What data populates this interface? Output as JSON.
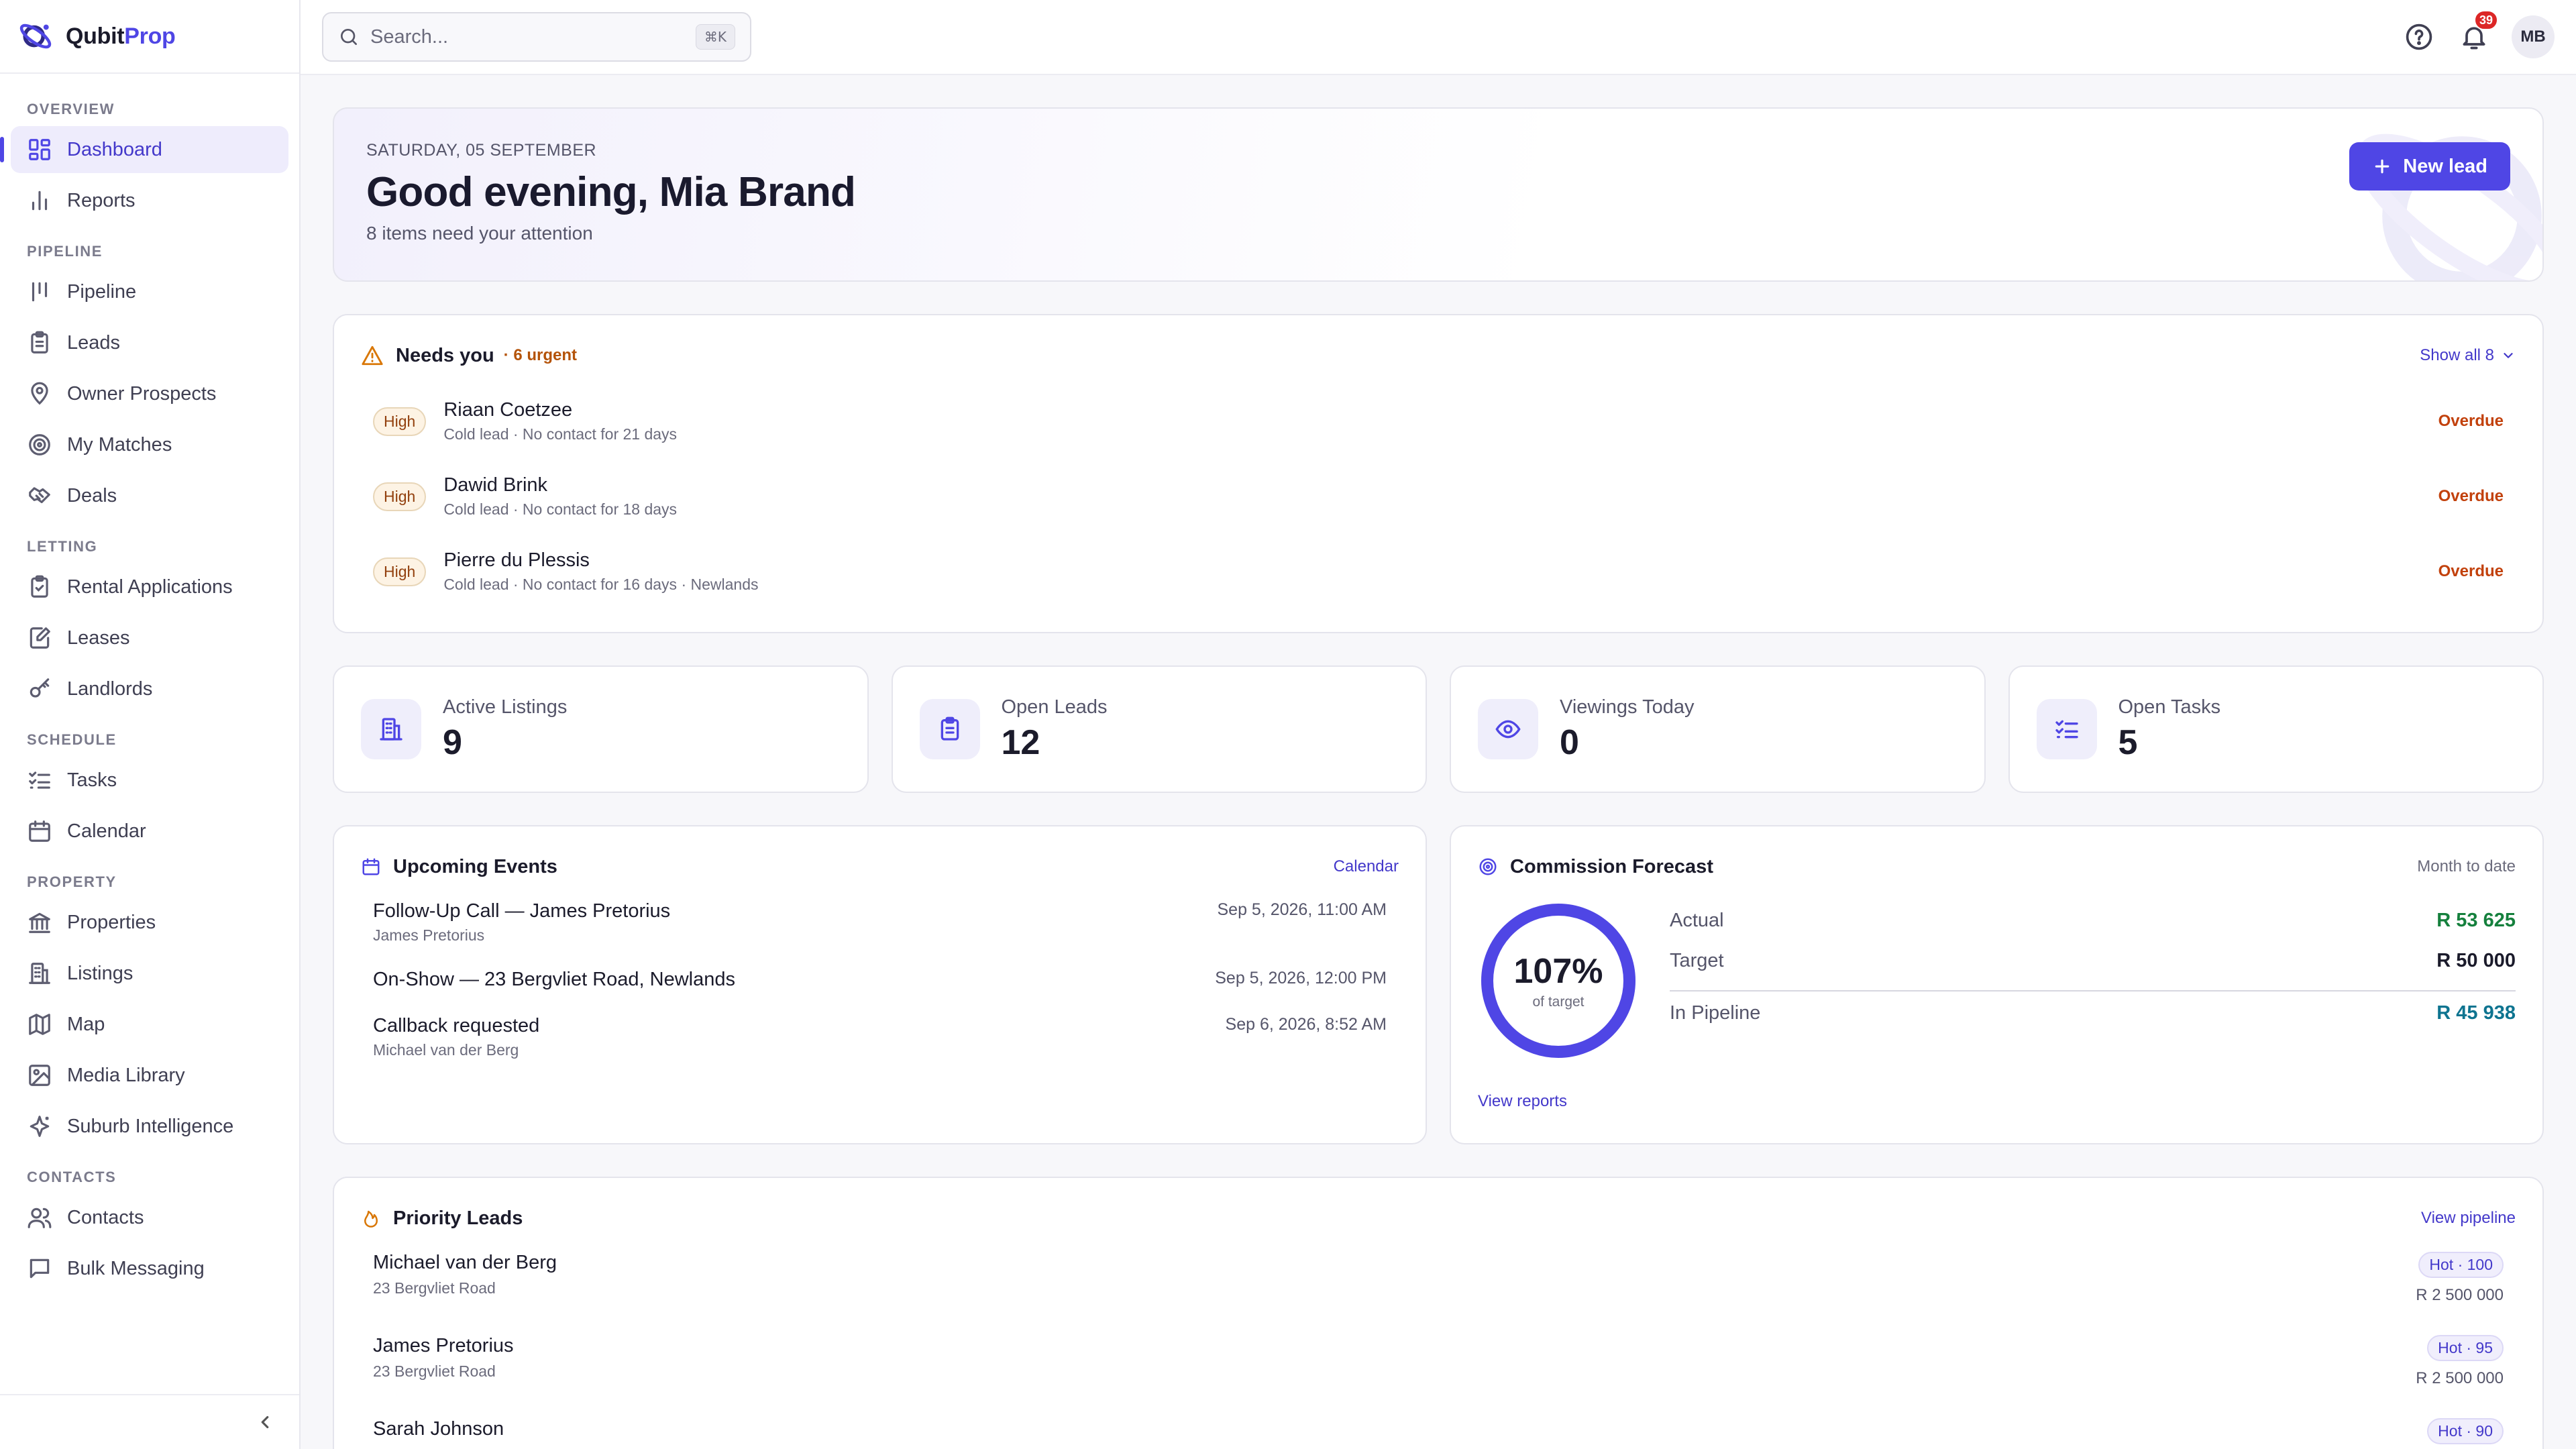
{
  "brand": {
    "name_a": "Qubit",
    "name_b": "Prop"
  },
  "sidebar": {
    "sections": [
      {
        "title": "OVERVIEW",
        "items": [
          {
            "label": "Dashboard",
            "icon": "dashboard-icon",
            "active": true
          },
          {
            "label": "Reports",
            "icon": "bar-chart-icon"
          }
        ]
      },
      {
        "title": "PIPELINE",
        "items": [
          {
            "label": "Pipeline",
            "icon": "pipeline-icon"
          },
          {
            "label": "Leads",
            "icon": "clipboard-icon"
          },
          {
            "label": "Owner Prospects",
            "icon": "map-pin-icon"
          },
          {
            "label": "My Matches",
            "icon": "target-icon"
          },
          {
            "label": "Deals",
            "icon": "handshake-icon"
          }
        ]
      },
      {
        "title": "LETTING",
        "items": [
          {
            "label": "Rental Applications",
            "icon": "clipboard-check-icon"
          },
          {
            "label": "Leases",
            "icon": "file-edit-icon"
          },
          {
            "label": "Landlords",
            "icon": "key-icon"
          }
        ]
      },
      {
        "title": "SCHEDULE",
        "items": [
          {
            "label": "Tasks",
            "icon": "list-checks-icon"
          },
          {
            "label": "Calendar",
            "icon": "calendar-icon"
          }
        ]
      },
      {
        "title": "PROPERTY",
        "items": [
          {
            "label": "Properties",
            "icon": "bank-icon"
          },
          {
            "label": "Listings",
            "icon": "building-icon"
          },
          {
            "label": "Map",
            "icon": "map-icon"
          },
          {
            "label": "Media Library",
            "icon": "image-icon"
          },
          {
            "label": "Suburb Intelligence",
            "icon": "sparkles-icon"
          }
        ]
      },
      {
        "title": "CONTACTS",
        "items": [
          {
            "label": "Contacts",
            "icon": "users-icon"
          },
          {
            "label": "Bulk Messaging",
            "icon": "message-icon"
          }
        ]
      }
    ]
  },
  "topbar": {
    "search_placeholder": "Search...",
    "search_shortcut": "⌘K",
    "notification_count": "39",
    "avatar_initials": "MB"
  },
  "greeting": {
    "date": "SATURDAY, 05 SEPTEMBER",
    "title": "Good evening, Mia Brand",
    "subtitle": "8 items need your attention",
    "new_lead_label": "New lead"
  },
  "needs": {
    "title": "Needs you",
    "urgent": "· 6 urgent",
    "show_all": "Show all 8",
    "rows": [
      {
        "priority": "High",
        "name": "Riaan Coetzee",
        "detail": "Cold lead · No contact for 21 days",
        "status": "Overdue"
      },
      {
        "priority": "High",
        "name": "Dawid Brink",
        "detail": "Cold lead · No contact for 18 days",
        "status": "Overdue"
      },
      {
        "priority": "High",
        "name": "Pierre du Plessis",
        "detail": "Cold lead · No contact for 16 days · Newlands",
        "status": "Overdue"
      }
    ]
  },
  "stats": [
    {
      "label": "Active Listings",
      "value": "9",
      "icon": "building-icon"
    },
    {
      "label": "Open Leads",
      "value": "12",
      "icon": "clipboard-icon"
    },
    {
      "label": "Viewings Today",
      "value": "0",
      "icon": "eye-icon"
    },
    {
      "label": "Open Tasks",
      "value": "5",
      "icon": "list-checks-icon"
    }
  ],
  "events": {
    "title": "Upcoming Events",
    "link": "Calendar",
    "items": [
      {
        "title": "Follow-Up Call — James Pretorius",
        "sub": "James Pretorius",
        "date": "Sep 5, 2026, 11:00 AM"
      },
      {
        "title": "On-Show — 23 Bergvliet Road, Newlands",
        "sub": "",
        "date": "Sep 5, 2026, 12:00 PM"
      },
      {
        "title": "Callback requested",
        "sub": "Michael van der Berg",
        "date": "Sep 6, 2026, 8:52 AM"
      }
    ]
  },
  "forecast": {
    "title": "Commission Forecast",
    "period": "Month to date",
    "percent_label": "107%",
    "percent_value": 107,
    "of_target": "of target",
    "actual_label": "Actual",
    "actual_value": "R 53 625",
    "target_label": "Target",
    "target_value": "R 50 000",
    "pipeline_label": "In Pipeline",
    "pipeline_value": "R 45 938",
    "view_reports": "View reports",
    "colors": {
      "actual": "#15803d",
      "pipeline": "#0e7490",
      "ring": "#4f46e5"
    }
  },
  "priority": {
    "title": "Priority Leads",
    "link": "View pipeline",
    "leads": [
      {
        "name": "Michael van der Berg",
        "address": "23 Bergvliet Road",
        "tag": "Hot · 100",
        "price": "R 2 500 000"
      },
      {
        "name": "James Pretorius",
        "address": "23 Bergvliet Road",
        "tag": "Hot · 95",
        "price": "R 2 500 000"
      },
      {
        "name": "Sarah Johnson",
        "address": "",
        "tag": "Hot · 90",
        "price": ""
      }
    ]
  },
  "colors": {
    "accent": "#4f46e5",
    "overdue": "#c2410c",
    "urgent": "#b45309"
  }
}
